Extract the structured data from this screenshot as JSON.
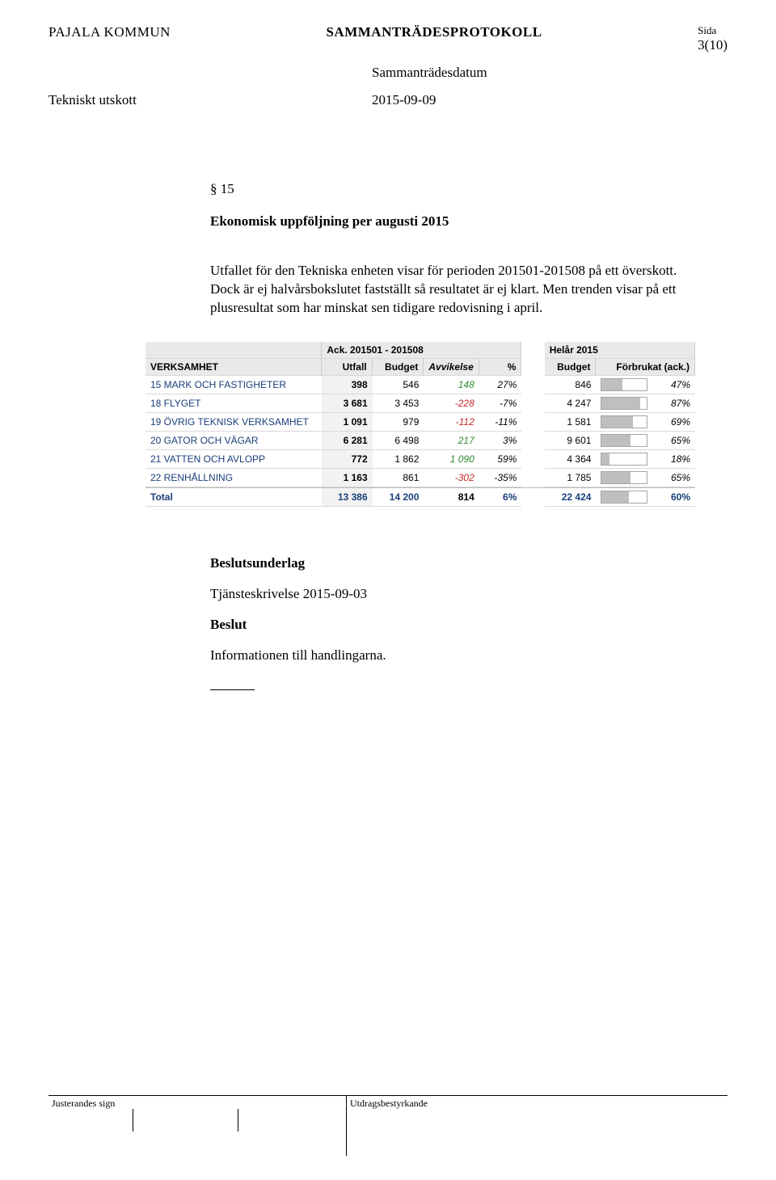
{
  "header": {
    "organisation": "PAJALA KOMMUN",
    "doc_title": "SAMMANTRÄDESPROTOKOLL",
    "sida_label": "Sida",
    "page_number": "3(10)",
    "meeting_date_label": "Sammanträdesdatum",
    "committee": "Tekniskt utskott",
    "meeting_date": "2015-09-09"
  },
  "content": {
    "section_number": "§ 15",
    "heading": "Ekonomisk uppföljning per augusti 2015",
    "body": "Utfallet för den Tekniska enheten visar för perioden 201501-201508 på ett överskott. Dock är ej halvårsbokslutet fastställt så resultatet är ej klart. Men trenden visar på ett plusresultat som har minskat sen tidigare redovisning i april."
  },
  "table": {
    "group_ack": "Ack. 201501 - 201508",
    "group_year": "Helår 2015",
    "col_verksamhet": "VERKSAMHET",
    "col_utfall": "Utfall",
    "col_budget": "Budget",
    "col_avvikelse": "Avvikelse",
    "col_pct": "%",
    "col_budget_year": "Budget",
    "col_forbruk": "Förbrukat (ack.)",
    "rows": [
      {
        "name": "15 MARK OCH FASTIGHETER",
        "utfall": "398",
        "budget": "546",
        "avv": "148",
        "avv_sign": "pos",
        "pct": "27%",
        "year_budget": "846",
        "bar": 47,
        "forbruk": "47%"
      },
      {
        "name": "18 FLYGET",
        "utfall": "3 681",
        "budget": "3 453",
        "avv": "-228",
        "avv_sign": "neg",
        "pct": "-7%",
        "year_budget": "4 247",
        "bar": 87,
        "forbruk": "87%"
      },
      {
        "name": "19 ÖVRIG TEKNISK VERKSAMHET",
        "utfall": "1 091",
        "budget": "979",
        "avv": "-112",
        "avv_sign": "neg",
        "pct": "-11%",
        "year_budget": "1 581",
        "bar": 69,
        "forbruk": "69%"
      },
      {
        "name": "20 GATOR OCH VÄGAR",
        "utfall": "6 281",
        "budget": "6 498",
        "avv": "217",
        "avv_sign": "pos",
        "pct": "3%",
        "year_budget": "9 601",
        "bar": 65,
        "forbruk": "65%"
      },
      {
        "name": "21 VATTEN OCH AVLOPP",
        "utfall": "772",
        "budget": "1 862",
        "avv": "1 090",
        "avv_sign": "pos",
        "pct": "59%",
        "year_budget": "4 364",
        "bar": 18,
        "forbruk": "18%"
      },
      {
        "name": "22 RENHÅLLNING",
        "utfall": "1 163",
        "budget": "861",
        "avv": "-302",
        "avv_sign": "neg",
        "pct": "-35%",
        "year_budget": "1 785",
        "bar": 65,
        "forbruk": "65%"
      }
    ],
    "total": {
      "name": "Total",
      "utfall": "13 386",
      "budget": "14 200",
      "avv": "814",
      "pct": "6%",
      "year_budget": "22 424",
      "bar": 60,
      "forbruk": "60%"
    }
  },
  "after": {
    "underlag_head": "Beslutsunderlag",
    "underlag_text": "Tjänsteskrivelse 2015-09-03",
    "beslut_head": "Beslut",
    "beslut_text": "Informationen till handlingarna."
  },
  "footer": {
    "left_label": "Justerandes sign",
    "right_label": "Utdragsbestyrkande"
  },
  "colors": {
    "text": "#000000",
    "link_blue": "#1a3f7a",
    "positive": "#2f8a2f",
    "negative": "#c62828",
    "grid_bg": "#e9e9e9",
    "bar_fill": "#bfbfbf",
    "bar_border": "#a6a6a6"
  }
}
